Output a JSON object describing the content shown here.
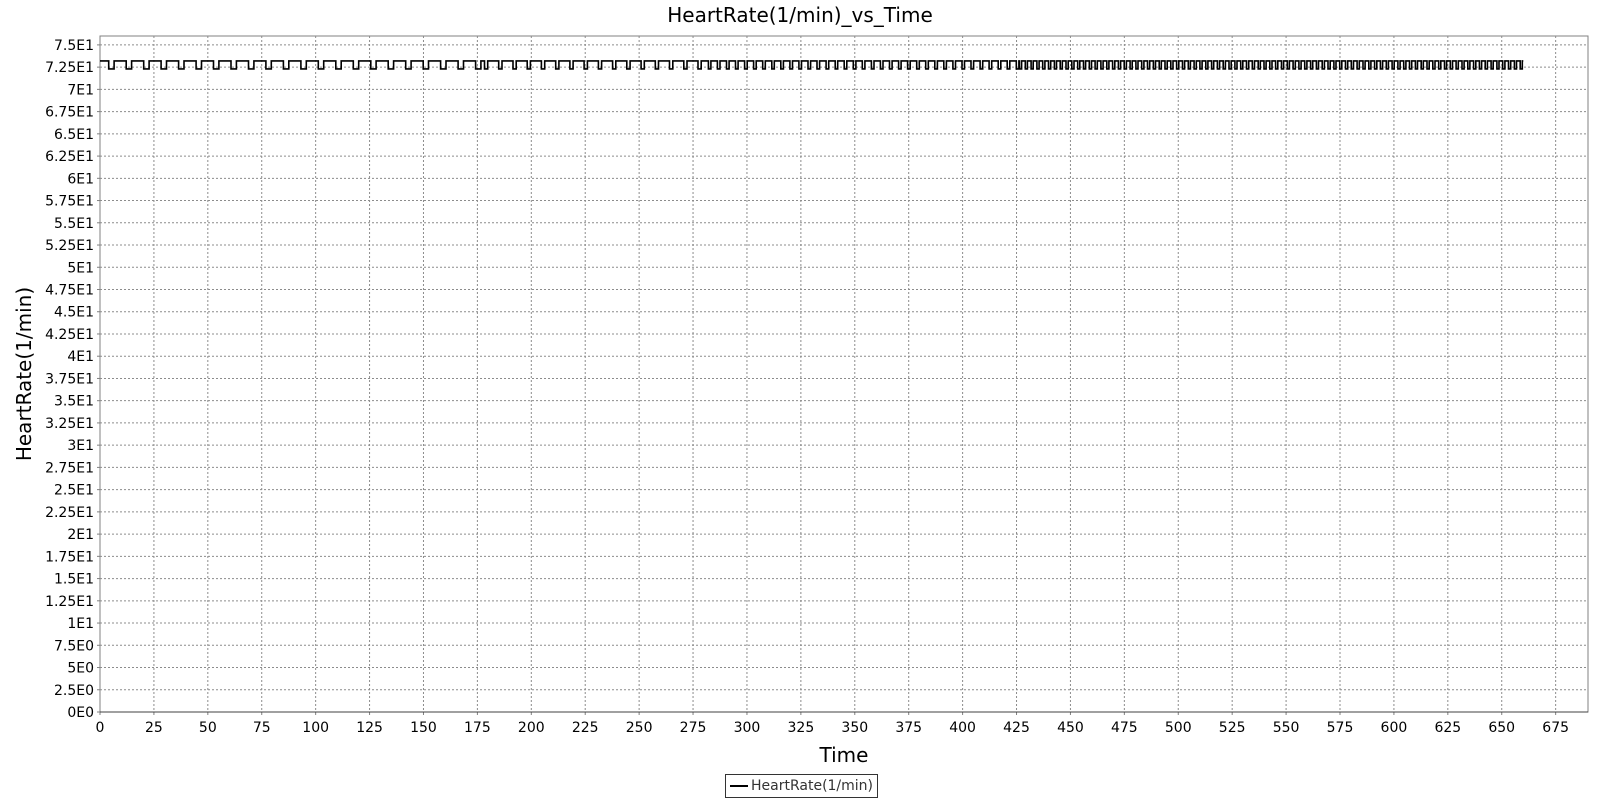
{
  "chart_data": {
    "type": "line",
    "title": "HeartRate(1/min)_vs_Time",
    "xlabel": "Time",
    "ylabel": "HeartRate(1/min)",
    "xlim": [
      0,
      690
    ],
    "ylim": [
      0,
      76
    ],
    "x_ticks": [
      0,
      25,
      50,
      75,
      100,
      125,
      150,
      175,
      200,
      225,
      250,
      275,
      300,
      325,
      350,
      375,
      400,
      425,
      450,
      475,
      500,
      525,
      550,
      575,
      600,
      625,
      650,
      675
    ],
    "y_ticks": [
      {
        "value": 0,
        "label": "0E0"
      },
      {
        "value": 2.5,
        "label": "2.5E0"
      },
      {
        "value": 5,
        "label": "5E0"
      },
      {
        "value": 7.5,
        "label": "7.5E0"
      },
      {
        "value": 10,
        "label": "1E1"
      },
      {
        "value": 12.5,
        "label": "1.25E1"
      },
      {
        "value": 15,
        "label": "1.5E1"
      },
      {
        "value": 17.5,
        "label": "1.75E1"
      },
      {
        "value": 20,
        "label": "2E1"
      },
      {
        "value": 22.5,
        "label": "2.25E1"
      },
      {
        "value": 25,
        "label": "2.5E1"
      },
      {
        "value": 27.5,
        "label": "2.75E1"
      },
      {
        "value": 30,
        "label": "3E1"
      },
      {
        "value": 32.5,
        "label": "3.25E1"
      },
      {
        "value": 35,
        "label": "3.5E1"
      },
      {
        "value": 37.5,
        "label": "3.75E1"
      },
      {
        "value": 40,
        "label": "4E1"
      },
      {
        "value": 42.5,
        "label": "4.25E1"
      },
      {
        "value": 45,
        "label": "4.5E1"
      },
      {
        "value": 47.5,
        "label": "4.75E1"
      },
      {
        "value": 50,
        "label": "5E1"
      },
      {
        "value": 52.5,
        "label": "5.25E1"
      },
      {
        "value": 55,
        "label": "5.5E1"
      },
      {
        "value": 57.5,
        "label": "5.75E1"
      },
      {
        "value": 60,
        "label": "6E1"
      },
      {
        "value": 62.5,
        "label": "6.25E1"
      },
      {
        "value": 65,
        "label": "6.5E1"
      },
      {
        "value": 67.5,
        "label": "6.75E1"
      },
      {
        "value": 70,
        "label": "7E1"
      },
      {
        "value": 72.5,
        "label": "7.25E1"
      },
      {
        "value": 75,
        "label": "7.5E1"
      }
    ],
    "grid": true,
    "legend_position": "bottom-center",
    "series": [
      {
        "name": "HeartRate(1/min)",
        "color": "#000000",
        "x_start": 0,
        "x_end": 660,
        "high_value": 73.2,
        "low_value": 72.3,
        "segments": [
          {
            "x_from": 0,
            "x_to": 175,
            "period": 8.1,
            "low_width": 2.5
          },
          {
            "x_from": 175,
            "x_to": 280,
            "period": 6.6,
            "low_width": 1.5
          },
          {
            "x_from": 280,
            "x_to": 425,
            "period": 4.2,
            "low_width": 1.2
          },
          {
            "x_from": 425,
            "x_to": 660,
            "period": 2.7,
            "low_width": 1.0
          }
        ]
      }
    ]
  }
}
